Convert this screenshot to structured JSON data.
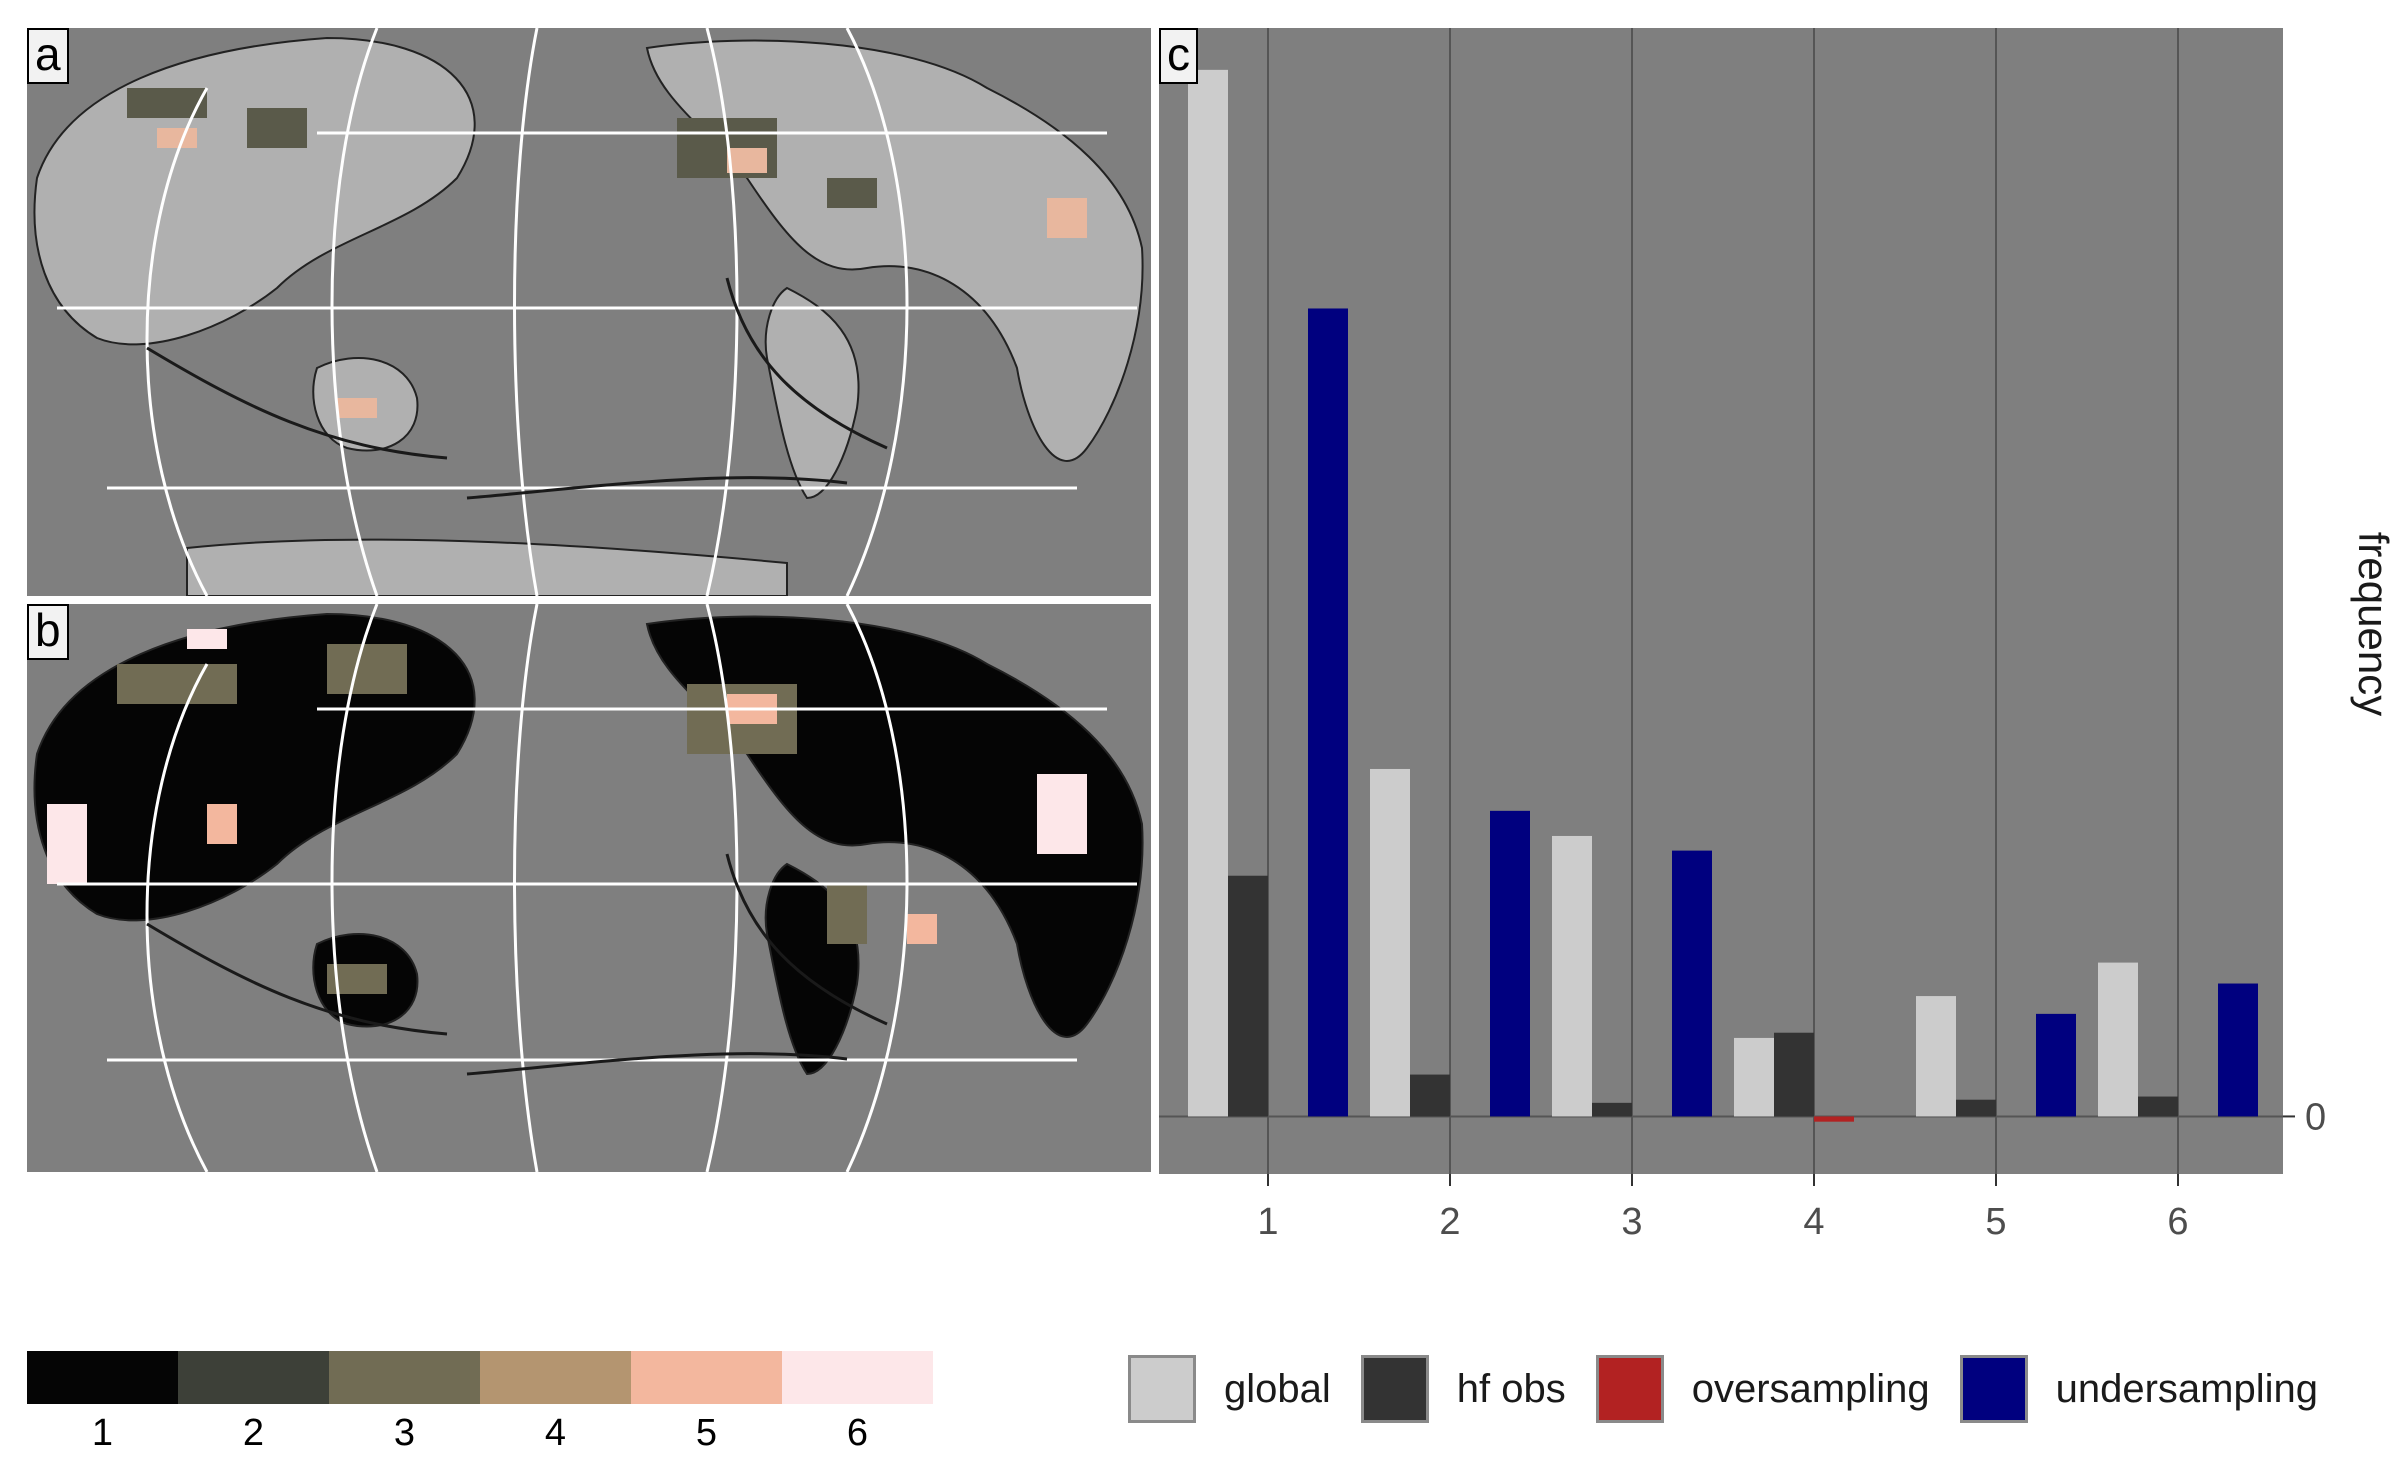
{
  "panels": {
    "a": "a",
    "b": "b",
    "c": "c"
  },
  "colors": {
    "panel_bg": "#7f7f7f",
    "grid": "#555555",
    "land": "#b0b0b0",
    "scale": [
      "#050505",
      "#3d4038",
      "#716c54",
      "#b49570",
      "#f3b79e",
      "#fde7e9"
    ]
  },
  "colorbar": {
    "labels": [
      "1",
      "2",
      "3",
      "4",
      "5",
      "6"
    ]
  },
  "chart_data": {
    "type": "bar",
    "categories": [
      "1",
      "2",
      "3",
      "4",
      "5",
      "6"
    ],
    "series": [
      {
        "name": "global",
        "color": "#cccccc",
        "values": [
          1.0,
          0.332,
          0.268,
          0.075,
          0.115,
          0.147
        ]
      },
      {
        "name": "hf obs",
        "color": "#333333",
        "values": [
          0.23,
          0.04,
          0.013,
          0.08,
          0.016,
          0.019
        ]
      },
      {
        "name": "oversampling",
        "color": "#b22222",
        "values": [
          0,
          0,
          0,
          -0.005,
          0,
          0
        ]
      },
      {
        "name": "undersampling",
        "color": "#00007f",
        "values": [
          0.772,
          0.292,
          0.254,
          0,
          0.098,
          0.127
        ]
      }
    ],
    "ylabel": "frequency",
    "y_tick": "0",
    "ylim": [
      -0.055,
      1.04
    ],
    "grid": true,
    "legend_position": "bottom"
  }
}
